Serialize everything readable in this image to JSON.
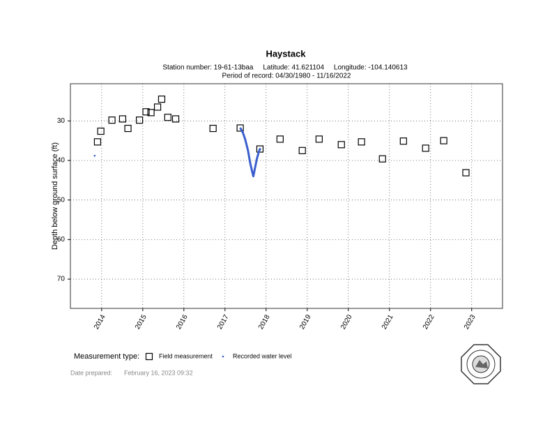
{
  "chart_data": {
    "type": "scatter",
    "title": "Haystack",
    "subtitle": "Station number: 19-61-13baa     Latitude: 41.621104     Longitude: -104.140613",
    "period": "Period of record: 04/30/1980 - 11/16/2022",
    "y_label": "Depth below ground surface (ft)",
    "legend_title": "Measurement type:",
    "date_label": "Date prepared:",
    "date_value": "February 16, 2023 09:32",
    "xlim": [
      2013.24,
      2023.75
    ],
    "xticks": [
      2014,
      2015,
      2016,
      2017,
      2018,
      2019,
      2020,
      2021,
      2022,
      2023
    ],
    "ylim": [
      20.6,
      77.4
    ],
    "yticks": [
      30,
      40,
      50,
      60,
      70
    ],
    "y_inverted": true,
    "grid": true,
    "series": [
      {
        "name": "Field measurement",
        "mode": "markers",
        "color": "#000000",
        "x": [
          2013.9,
          2013.98,
          2014.25,
          2014.51,
          2014.64,
          2014.92,
          2015.08,
          2015.2,
          2015.36,
          2015.46,
          2015.61,
          2015.8,
          2016.71,
          2017.37,
          2017.85,
          2018.34,
          2018.88,
          2019.29,
          2019.83,
          2020.32,
          2020.83,
          2021.34,
          2021.88,
          2022.32,
          2022.86
        ],
        "values": [
          35.3,
          32.6,
          29.8,
          29.5,
          31.9,
          29.8,
          27.7,
          27.9,
          26.5,
          24.5,
          29.1,
          29.5,
          31.9,
          31.8,
          37.1,
          34.6,
          37.5,
          34.6,
          36.0,
          35.3,
          39.6,
          35.1,
          36.9,
          35.0,
          43.1
        ]
      },
      {
        "name": "Recorded water level",
        "mode": "lines",
        "color": "#3a5fcd",
        "x": [
          2013.83,
          null,
          2017.37,
          2017.44,
          2017.49,
          2017.56,
          2017.61,
          2017.66,
          2017.69,
          2017.73,
          2017.78,
          2017.83,
          2017.86
        ],
        "values": [
          38.8,
          null,
          31.7,
          33.1,
          34.6,
          37.5,
          40.5,
          42.8,
          44.0,
          41.9,
          39.4,
          37.6,
          36.9
        ]
      }
    ]
  }
}
